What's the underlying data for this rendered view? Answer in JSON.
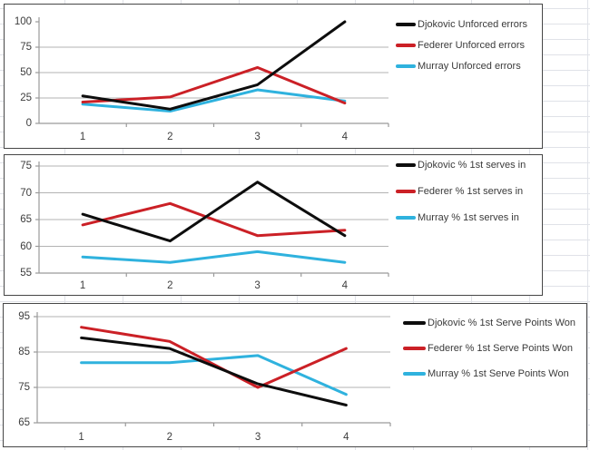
{
  "sheet": {
    "background_color": "#ffffff",
    "cell_gridline_color": "#e0e2e8"
  },
  "chart_style": {
    "axis_color": "#9a9a9a",
    "gridline_color": "#b3b3b3",
    "series_line_width": 3,
    "black": "#0d0d0d",
    "red": "#cb2026",
    "cyan": "#2fb2de"
  },
  "chart_data": [
    {
      "type": "line",
      "id": "unforced-errors",
      "categories": [
        "1",
        "2",
        "3",
        "4"
      ],
      "series": [
        {
          "name": "Djokovic Unforced errors",
          "color": "#0d0d0d",
          "values": [
            27,
            14,
            38,
            100
          ]
        },
        {
          "name": "Federer Unforced errors",
          "color": "#cb2026",
          "values": [
            21,
            26,
            55,
            20
          ]
        },
        {
          "name": "Murray Unforced errors",
          "color": "#2fb2de",
          "values": [
            19,
            12,
            33,
            22
          ]
        }
      ],
      "ylim": [
        0,
        100
      ],
      "yticks": [
        0,
        25,
        50,
        75,
        100
      ],
      "grid": true,
      "legend_position": "right"
    },
    {
      "type": "line",
      "id": "pct-1st-serves-in",
      "categories": [
        "1",
        "2",
        "3",
        "4"
      ],
      "series": [
        {
          "name": "Djokovic % 1st serves in",
          "color": "#0d0d0d",
          "values": [
            66,
            61,
            72,
            62
          ]
        },
        {
          "name": "Federer % 1st serves in",
          "color": "#cb2026",
          "values": [
            64,
            68,
            62,
            63
          ]
        },
        {
          "name": "Murray % 1st serves in",
          "color": "#2fb2de",
          "values": [
            58,
            57,
            59,
            57
          ]
        }
      ],
      "ylim": [
        55,
        75
      ],
      "yticks": [
        55,
        60,
        65,
        70,
        75
      ],
      "grid": true,
      "legend_position": "right"
    },
    {
      "type": "line",
      "id": "pct-1st-serve-points-won",
      "categories": [
        "1",
        "2",
        "3",
        "4"
      ],
      "series": [
        {
          "name": "Djokovic % 1st Serve Points Won",
          "color": "#0d0d0d",
          "values": [
            89,
            86,
            76,
            70
          ]
        },
        {
          "name": "Federer % 1st Serve Points Won",
          "color": "#cb2026",
          "values": [
            92,
            88,
            75,
            86
          ]
        },
        {
          "name": "Murray % 1st Serve Points Won",
          "color": "#2fb2de",
          "values": [
            82,
            82,
            84,
            73
          ]
        }
      ],
      "ylim": [
        65,
        95
      ],
      "yticks": [
        65,
        75,
        85,
        95
      ],
      "grid": true,
      "legend_position": "right"
    }
  ]
}
